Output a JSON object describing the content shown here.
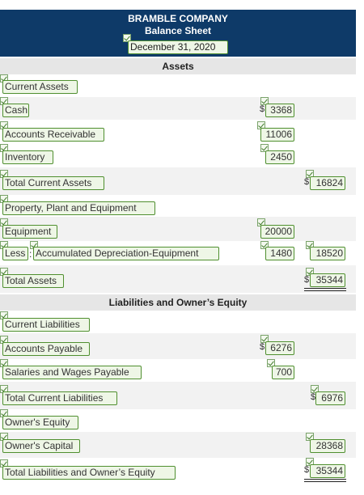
{
  "header": {
    "company": "BRAMBLE COMPANY",
    "title": "Balance Sheet",
    "date": "December 31, 2020"
  },
  "sections": {
    "assets": "Assets",
    "liabilities_equity": "Liabilities and Owner’s Equity"
  },
  "rows": {
    "current_assets": "Current Assets",
    "cash": "Cash",
    "cash_value": "3368",
    "accounts_receivable": "Accounts Receivable",
    "ar_value": "11006",
    "inventory": "Inventory",
    "inventory_value": "2450",
    "total_current_assets": "Total Current Assets",
    "tca_value": "16824",
    "ppe": "Property, Plant and Equipment",
    "equipment": "Equipment",
    "equipment_value": "20000",
    "less": "Less",
    "acc_dep": "Accumulated Depreciation-Equipment",
    "acc_dep_value": "1480",
    "net_equipment_value": "18520",
    "total_assets": "Total Assets",
    "total_assets_value": "35344",
    "current_liabilities": "Current Liabilities",
    "accounts_payable": "Accounts Payable",
    "ap_value": "6276",
    "salaries_payable": "Salaries and Wages Payable",
    "salaries_value": "700",
    "total_current_liabilities": "Total Current Liabilities",
    "tcl_value": "6976",
    "owners_equity": "Owner's Equity",
    "owners_capital": "Owner's Capital",
    "owners_capital_value": "28368",
    "total_le": "Total Liabilities and Owner’s Equity",
    "total_le_value": "35344"
  },
  "symbols": {
    "dollar": "$"
  }
}
